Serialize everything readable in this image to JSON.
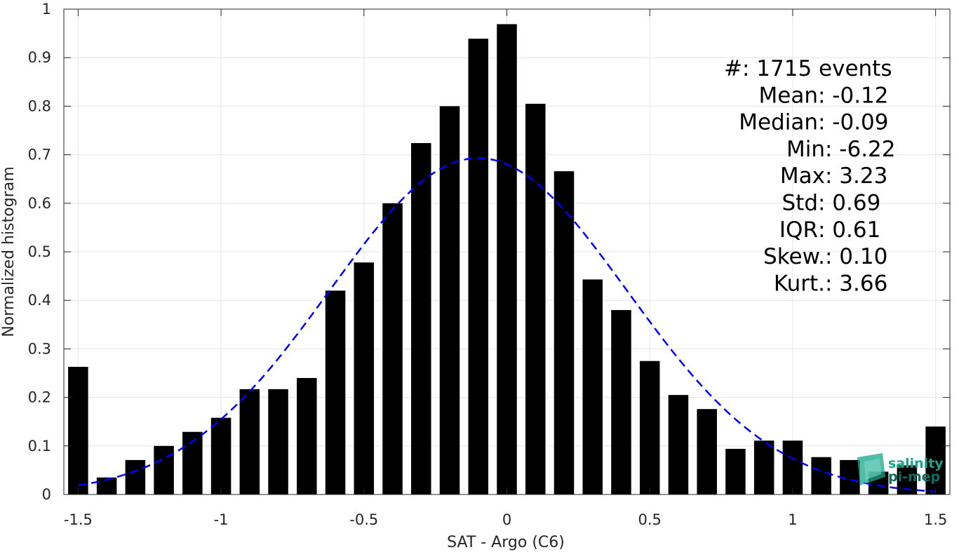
{
  "chart_data": {
    "type": "bar",
    "xlabel": "SAT - Argo (C6)",
    "ylabel": "Normalized histogram",
    "xlim": [
      -1.55,
      1.55
    ],
    "ylim": [
      0,
      1
    ],
    "grid": true,
    "xticks": [
      -1.5,
      -1,
      -0.5,
      0,
      0.5,
      1,
      1.5
    ],
    "xtick_labels": [
      "-1.5",
      "-1",
      "-0.5",
      "0",
      "0.5",
      "1",
      "1.5"
    ],
    "yticks": [
      0,
      0.1,
      0.2,
      0.3,
      0.4,
      0.5,
      0.6,
      0.7,
      0.8,
      0.9,
      1
    ],
    "ytick_labels": [
      "0",
      "0.1",
      "0.2",
      "0.3",
      "0.4",
      "0.5",
      "0.6",
      "0.7",
      "0.8",
      "0.9",
      "1"
    ],
    "bar_color": "#000000",
    "bar_width": 0.07,
    "x": [
      -1.5,
      -1.4,
      -1.3,
      -1.2,
      -1.1,
      -1.0,
      -0.9,
      -0.8,
      -0.7,
      -0.6,
      -0.5,
      -0.4,
      -0.3,
      -0.2,
      -0.1,
      0.0,
      0.1,
      0.2,
      0.3,
      0.4,
      0.5,
      0.6,
      0.7,
      0.8,
      0.9,
      1.0,
      1.1,
      1.2,
      1.3,
      1.4,
      1.5
    ],
    "values": [
      0.263,
      0.035,
      0.071,
      0.1,
      0.129,
      0.158,
      0.217,
      0.217,
      0.24,
      0.42,
      0.478,
      0.6,
      0.724,
      0.8,
      0.939,
      0.969,
      0.805,
      0.666,
      0.443,
      0.38,
      0.275,
      0.205,
      0.176,
      0.094,
      0.111,
      0.111,
      0.077,
      0.071,
      0.047,
      0.06,
      0.14
    ],
    "fit_curve": {
      "type": "gaussian",
      "color": "#0000ff",
      "style": "dashed",
      "mean": -0.1,
      "peak": 0.693,
      "sigma": 0.52,
      "x_range": [
        -1.5,
        1.5
      ]
    },
    "stats": [
      {
        "label": "#  ",
        "value": ": 1715 events"
      },
      {
        "label": "Mean ",
        "value": ": -0.12"
      },
      {
        "label": "Median ",
        "value": ": -0.09"
      },
      {
        "label": "Min ",
        "value": ": -6.22"
      },
      {
        "label": "Max ",
        "value": ": 3.23"
      },
      {
        "label": "Std ",
        "value": ": 0.69"
      },
      {
        "label": "IQR ",
        "value": ": 0.61"
      },
      {
        "label": "Skew. ",
        "value": ": 0.10"
      },
      {
        "label": "Kurt. ",
        "value": ": 3.66"
      }
    ],
    "logo": {
      "line1": "salinity",
      "line2": "pi-mep",
      "color": "#1aa58a"
    }
  }
}
